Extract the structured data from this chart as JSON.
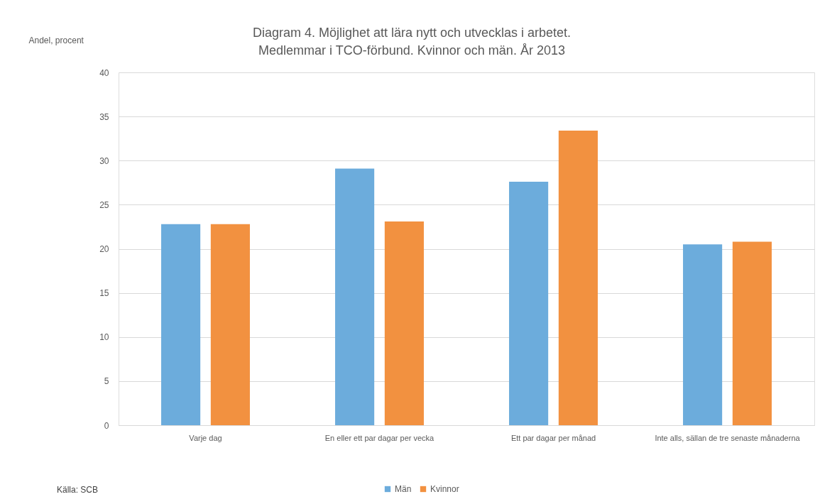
{
  "chart_data": {
    "type": "bar",
    "title": "Diagram 4. Möjlighet att lära nytt och utvecklas i arbetet.\nMedlemmar i TCO-förbund. Kvinnor och män. År 2013",
    "ylabel": "Andel, procent",
    "categories": [
      "Varje dag",
      "En eller ett par dagar per vecka",
      "Ett par dagar per månad",
      "Inte alls, sällan de tre senaste månaderna"
    ],
    "series": [
      {
        "name": "Män",
        "color": "#6cacdc",
        "values": [
          22.8,
          29.1,
          27.6,
          20.5
        ]
      },
      {
        "name": "Kvinnor",
        "color": "#f29140",
        "values": [
          22.8,
          23.1,
          33.4,
          20.8
        ]
      }
    ],
    "ylim": [
      0,
      40
    ],
    "yticks": [
      0,
      5,
      10,
      15,
      20,
      25,
      30,
      35,
      40
    ],
    "grid": "y",
    "legend": "bottom",
    "annotations": [
      "Källa: SCB"
    ]
  }
}
